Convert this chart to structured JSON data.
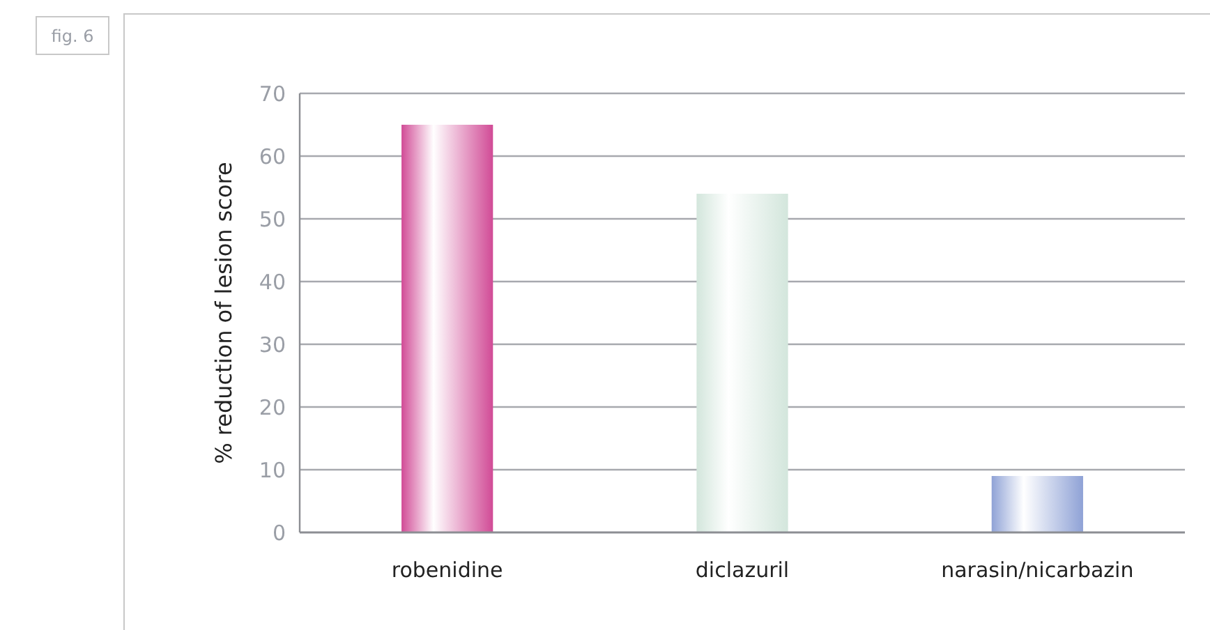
{
  "chart_data": {
    "type": "bar",
    "ylabel": "% reduction of lesion score",
    "annotations": [
      "fig. 6"
    ],
    "categories": [
      "robenidine",
      "diclazuril",
      "narasin/nicarbazin"
    ],
    "values": [
      65,
      54,
      9
    ],
    "colors": [
      "#d14b96",
      "#d3e6dc",
      "#8fa2d6"
    ],
    "ylim": [
      0,
      70
    ],
    "yticks": [
      0,
      10,
      20,
      30,
      40,
      50,
      60,
      70
    ],
    "grid": "y"
  }
}
